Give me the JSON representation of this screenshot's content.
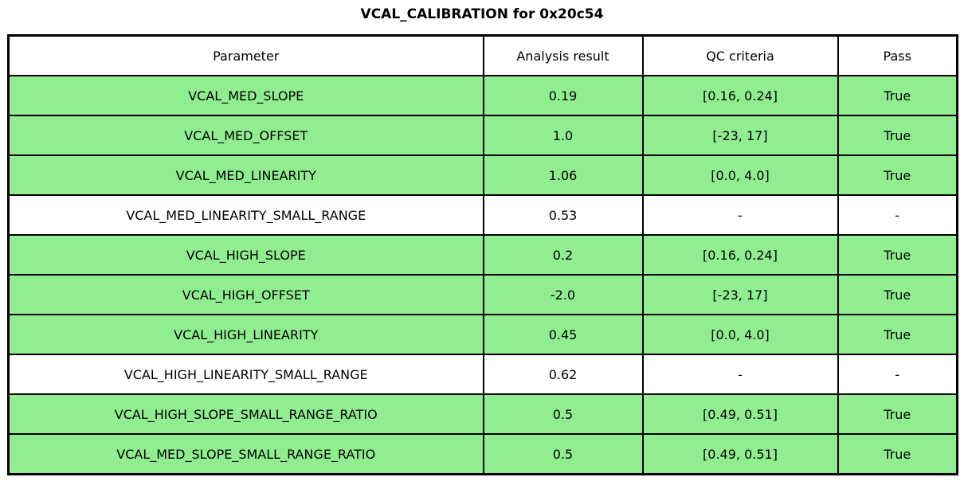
{
  "title": "VCAL_CALIBRATION for 0x20c54",
  "chart_data": {
    "type": "table",
    "title": "VCAL_CALIBRATION for 0x20c54",
    "columns": [
      "Parameter",
      "Analysis result",
      "QC criteria",
      "Pass"
    ],
    "rows": [
      [
        "VCAL_MED_SLOPE",
        "0.19",
        "[0.16, 0.24]",
        "True"
      ],
      [
        "VCAL_MED_OFFSET",
        "1.0",
        "[-23, 17]",
        "True"
      ],
      [
        "VCAL_MED_LINEARITY",
        "1.06",
        "[0.0, 4.0]",
        "True"
      ],
      [
        "VCAL_MED_LINEARITY_SMALL_RANGE",
        "0.53",
        "-",
        "-"
      ],
      [
        "VCAL_HIGH_SLOPE",
        "0.2",
        "[0.16, 0.24]",
        "True"
      ],
      [
        "VCAL_HIGH_OFFSET",
        "-2.0",
        "[-23, 17]",
        "True"
      ],
      [
        "VCAL_HIGH_LINEARITY",
        "0.45",
        "[0.0, 4.0]",
        "True"
      ],
      [
        "VCAL_HIGH_LINEARITY_SMALL_RANGE",
        "0.62",
        "-",
        "-"
      ],
      [
        "VCAL_HIGH_SLOPE_SMALL_RANGE_RATIO",
        "0.5",
        "[0.49, 0.51]",
        "True"
      ],
      [
        "VCAL_MED_SLOPE_SMALL_RANGE_RATIO",
        "0.5",
        "[0.49, 0.51]",
        "True"
      ]
    ],
    "row_highlighted": [
      true,
      true,
      true,
      false,
      true,
      true,
      true,
      false,
      true,
      true
    ],
    "layout": {
      "legend": "none",
      "grid": "full-cell-borders",
      "header_row": true
    }
  },
  "colors": {
    "pass_row_background": "#90EE90",
    "default_row_background": "#FFFFFF",
    "border": "#000000",
    "text": "#000000",
    "page_background": "#FFFFFF"
  }
}
